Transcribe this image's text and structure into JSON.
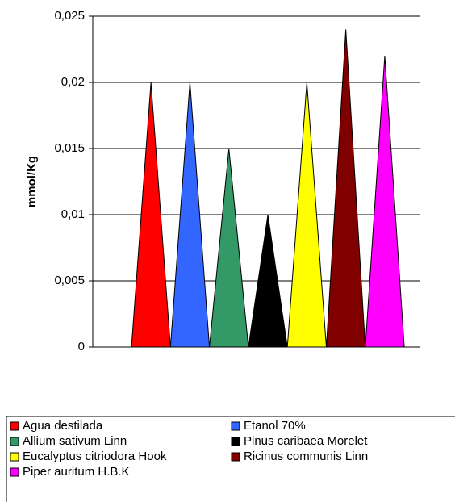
{
  "chart_data": {
    "type": "triangle-bar",
    "y_label": "mmol/Kg",
    "series": [
      {
        "name": "Agua destilada",
        "color": "#ff0000",
        "values": [
          0.02
        ]
      },
      {
        "name": "Etanol 70%",
        "color": "#3366ff",
        "values": [
          0.02
        ]
      },
      {
        "name": "Allium sativum Linn",
        "color": "#339966",
        "values": [
          0.015
        ]
      },
      {
        "name": "Pinus caribaea Morelet",
        "color": "#000000",
        "values": [
          0.01
        ]
      },
      {
        "name": "Eucalyptus citriodora Hook",
        "color": "#ffff00",
        "values": [
          0.02
        ]
      },
      {
        "name": "Ricinus communis Linn",
        "color": "#800000",
        "values": [
          0.024
        ]
      },
      {
        "name": "Piper auritum H.B.K",
        "color": "#ff00ff",
        "values": [
          0.022
        ]
      }
    ],
    "ylim": [
      0,
      0.025
    ],
    "yticks": [
      0,
      {
        "value": 0.005,
        "label": "0,005"
      },
      {
        "value": 0.01,
        "label": "0,01"
      },
      {
        "value": 0.015,
        "label": "0,015"
      },
      {
        "value": 0.02,
        "label": "0,02"
      },
      {
        "value": 0.025,
        "label": "0,025"
      }
    ],
    "grid": true
  }
}
